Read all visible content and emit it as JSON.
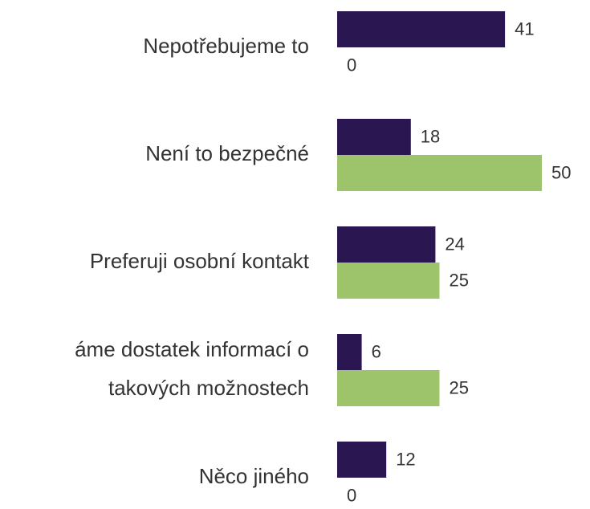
{
  "chart_data": {
    "type": "bar",
    "orientation": "horizontal",
    "categories": [
      "Nepotřebujeme to",
      "Není to bezpečné",
      "Preferuji osobní kontakt",
      [
        "áme dostatek informací o",
        "takových možnostech"
      ],
      "Něco jiného"
    ],
    "series": [
      {
        "color": "#2a1650",
        "values": [
          41,
          18,
          24,
          6,
          12
        ]
      },
      {
        "color": "#9dc46a",
        "values": [
          0,
          50,
          25,
          25,
          0
        ]
      }
    ]
  }
}
